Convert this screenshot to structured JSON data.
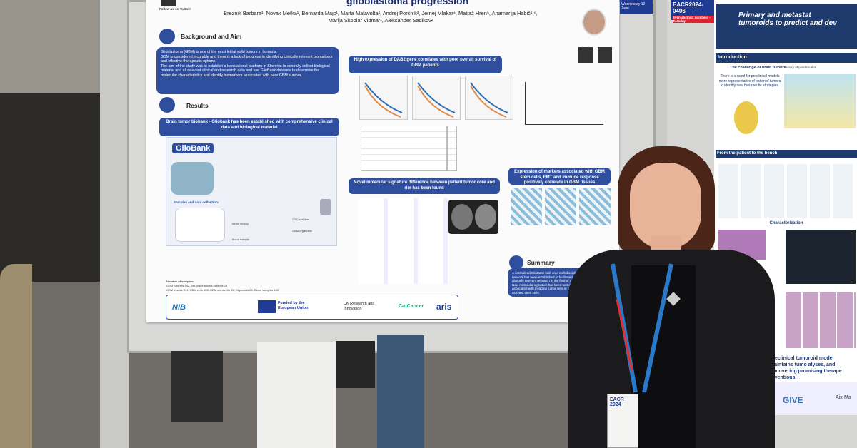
{
  "left_poster": {
    "twitter": "Follow us on Twitter!",
    "title": "glioblastoma progression",
    "authors": "Breznik Barbara¹, Novak Metka¹, Bernarda Majc¹, Marta Malavolta², Andrej Porčnik³, Jernej Mlakar⁴, Matjaž Hren⁵, Anamarija Habič¹˒⁶, Marija Skobiar Vidmar¹, Aleksander Sadikov²",
    "sections": {
      "background": "Background and Aim",
      "results": "Results",
      "summary": "Summary"
    },
    "background_points": [
      "Glioblastoma (GBM) is one of the most lethal solid tumors in humans.",
      "GBM is considered incurable and there is a lack of progress in identifying clinically relevant biomarkers and effective therapeutic options.",
      "The aim of the study was to establish a translational platform in Slovenia to centrally collect biological material and all relevant clinical and research data and use GlioBank datasets to determine the molecular characteristics and identify biomarkers associated with poor GBM survival."
    ],
    "result_headings": [
      "Brain tumor biobank - Gliobank has been established with comprehensive clinical data and biological material",
      "High expression of DAB2 gene correlates with poor overall survival of GBM patients",
      "Novel molecular signature difference between patient tumor core and rim has been found",
      "Expression of markers associated with GBM stem cells, EMT and immune response positively correlate in GBM tissues"
    ],
    "gliobank": "GlioBank",
    "gliobank_labels": [
      "Samples and data collection:",
      "tumor biopsy",
      "blood sample",
      "GBM organoids",
      "GSC cell line"
    ],
    "stats": [
      "Number of samples:",
      "GBM patients 342, low grade glioma patients 28",
      "GBM tissues 374, GBM cells 105, GBM stem cells 35, Organoids 85, Blood samples 180"
    ],
    "summary_points": [
      "A centralized GlioBank built on a multidisciplinary network has been established to facilitate basic and clinically relevant research in the field of neuro-oncology.",
      "New molecular signature has been found that are associated with invading tumor cells in patients as well as GBM stem cells."
    ],
    "funders": [
      "NIB",
      "Funded by the European Union",
      "UK Research and Innovation",
      "CutCancer",
      "aris"
    ],
    "tag": "Wednesday 12 June"
  },
  "right_poster": {
    "number": "EACR2024-0406",
    "tag": "Even abstract numbers - Tuesday",
    "title_lines": [
      "Primary and metastat",
      "tumoroids to predict and dev"
    ],
    "sections": [
      "Introduction",
      "From the patient to the bench",
      "Characterization"
    ],
    "intro_heading": "The challenge of brain tumors",
    "intro_text": "There is a need for preclinical models more representative of patients' tumors to identify new therapeutic strategies.",
    "history": "History of preclinical m",
    "conclusion": "preclinical tumoroid model maintains tumo alyses, and uncovering promising therape erventions.",
    "logos": [
      "GIVE",
      "Aix-Ma"
    ]
  },
  "badge": {
    "event": "EACR 2024"
  }
}
